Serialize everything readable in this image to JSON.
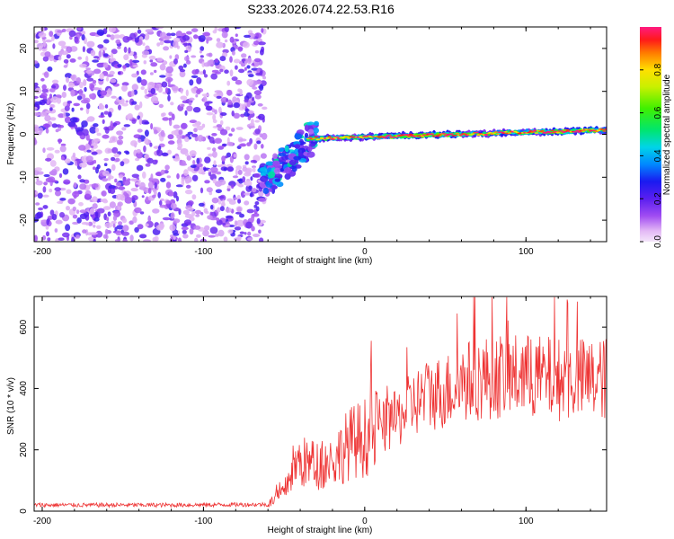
{
  "chart_data": [
    {
      "type": "heatmap",
      "title": "S233.2026.074.22.53.R16",
      "xlabel": "Height of straight line (km)",
      "ylabel": "Frequency (Hz)",
      "xlim": [
        -205,
        150
      ],
      "ylim": [
        -25,
        25
      ],
      "xticks": [
        -200,
        -100,
        0,
        100
      ],
      "yticks": [
        -20,
        -10,
        0,
        10,
        20
      ],
      "colorbar": {
        "label": "Normalized spectral amplitude",
        "range": [
          0,
          1
        ],
        "ticks": [
          0.0,
          0.2,
          0.4,
          0.6,
          0.8
        ],
        "tick_labels": [
          "0.0",
          "0.2",
          "0.4",
          "0.6",
          "0.8"
        ]
      },
      "features": [
        {
          "name": "noise-region",
          "x_range": [
            -205,
            -62
          ],
          "freq_range": [
            -25,
            25
          ],
          "amplitude": [
            0.05,
            0.25
          ]
        },
        {
          "name": "onset-cluster",
          "x_range": [
            -65,
            -30
          ],
          "freq_range": [
            -14,
            5
          ],
          "amplitude": [
            0.1,
            0.5
          ]
        },
        {
          "name": "tone-track",
          "x_range": [
            -35,
            150
          ],
          "freq_start": -1,
          "freq_end": 1,
          "amplitude": [
            0.3,
            1.0
          ]
        }
      ]
    },
    {
      "type": "line",
      "xlabel": "Height of straight line (km)",
      "ylabel": "SNR (10 * v/v)",
      "xlim": [
        -205,
        150
      ],
      "ylim": [
        0,
        700
      ],
      "xticks": [
        -200,
        -100,
        0,
        100
      ],
      "yticks": [
        0,
        200,
        400,
        600
      ],
      "color": "#ee3333",
      "series": [
        {
          "name": "SNR",
          "profile": [
            [
              -205,
              20
            ],
            [
              -120,
              20
            ],
            [
              -60,
              22
            ],
            [
              -50,
              60
            ],
            [
              -45,
              140
            ],
            [
              -40,
              160
            ],
            [
              -30,
              150
            ],
            [
              -20,
              160
            ],
            [
              -10,
              220
            ],
            [
              0,
              240
            ],
            [
              10,
              270
            ],
            [
              20,
              300
            ],
            [
              30,
              350
            ],
            [
              40,
              380
            ],
            [
              50,
              390
            ],
            [
              60,
              420
            ],
            [
              80,
              440
            ],
            [
              100,
              440
            ],
            [
              120,
              430
            ],
            [
              150,
              430
            ]
          ]
        }
      ]
    }
  ]
}
